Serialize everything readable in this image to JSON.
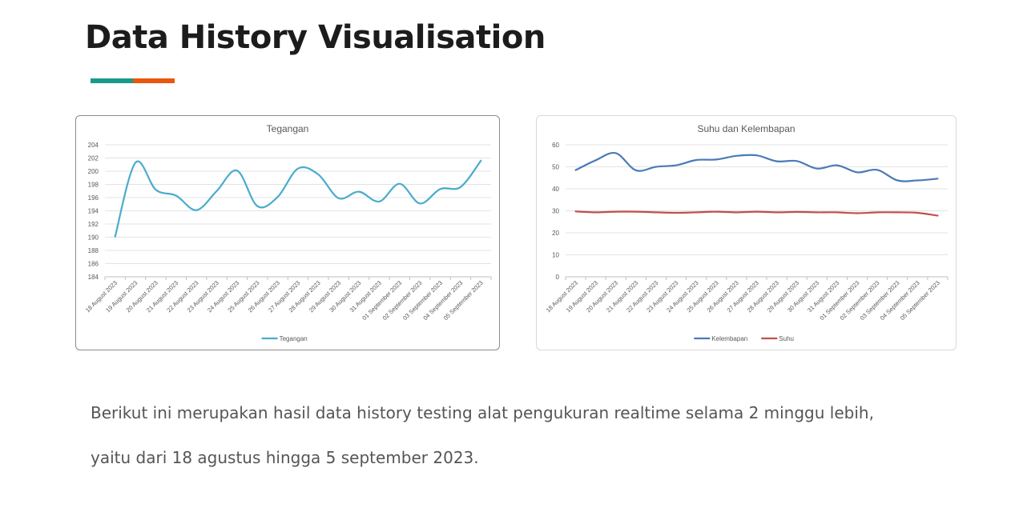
{
  "header": {
    "title": "Data History Visualisation",
    "accent_colors": [
      "#1a9a8a",
      "#e8570e"
    ]
  },
  "body_text": {
    "line1": "Berikut ini merupakan hasil data history testing alat pengukuran realtime selama 2 minggu lebih,",
    "line2": "yaitu dari 18 agustus hingga 5 september 2023."
  },
  "chart_data": [
    {
      "type": "line",
      "title": "Tegangan",
      "categories": [
        "18 August 2023",
        "19 August 2023",
        "20 August 2023",
        "21 August 2023",
        "22 August 2023",
        "23 August 2023",
        "24 August 2023",
        "25 August 2023",
        "26 August 2023",
        "27 August 2023",
        "28 August 2023",
        "29 August 2023",
        "30 August 2023",
        "31 August 2023",
        "01 September 2023",
        "02 September 2023",
        "03 September 2023",
        "04 September 2023",
        "05 September 2023"
      ],
      "series": [
        {
          "name": "Tegangan",
          "color": "#4aaccc",
          "values": [
            190.1,
            201.3,
            197.2,
            196.3,
            194.1,
            197.0,
            200.1,
            194.7,
            196.1,
            200.4,
            199.5,
            195.9,
            196.9,
            195.4,
            198.1,
            195.1,
            197.3,
            197.6,
            201.6
          ]
        }
      ],
      "ylim": [
        184,
        204
      ],
      "yticks": [
        184,
        186,
        188,
        190,
        192,
        194,
        196,
        198,
        200,
        202,
        204
      ],
      "grid": true,
      "legend": "bottom"
    },
    {
      "type": "line",
      "title": "Suhu dan Kelembapan",
      "categories": [
        "18 August 2023",
        "19 August 2023",
        "20 August 2023",
        "21 August 2023",
        "22 August 2023",
        "23 August 2023",
        "24 August 2023",
        "25 August 2023",
        "26 August 2023",
        "27 August 2023",
        "28 August 2023",
        "29 August 2023",
        "30 August 2023",
        "31 August 2023",
        "01 September 2023",
        "02 September 2023",
        "03 September 2023",
        "04 September 2023",
        "05 September 2023"
      ],
      "series": [
        {
          "name": "Kelembapan",
          "color": "#4a7ab8",
          "values": [
            48.5,
            53.0,
            56.2,
            48.4,
            50.0,
            50.7,
            53.1,
            53.3,
            55.0,
            55.2,
            52.5,
            52.6,
            49.2,
            50.7,
            47.5,
            48.6,
            43.8,
            43.8,
            44.6
          ]
        },
        {
          "name": "Suhu",
          "color": "#c0504d",
          "values": [
            29.7,
            29.3,
            29.6,
            29.6,
            29.3,
            29.1,
            29.3,
            29.6,
            29.3,
            29.6,
            29.3,
            29.5,
            29.3,
            29.3,
            28.9,
            29.3,
            29.3,
            29.1,
            27.8
          ]
        }
      ],
      "ylim": [
        0,
        60
      ],
      "yticks": [
        0,
        10,
        20,
        30,
        40,
        50,
        60
      ],
      "grid": true,
      "legend": "bottom"
    }
  ]
}
